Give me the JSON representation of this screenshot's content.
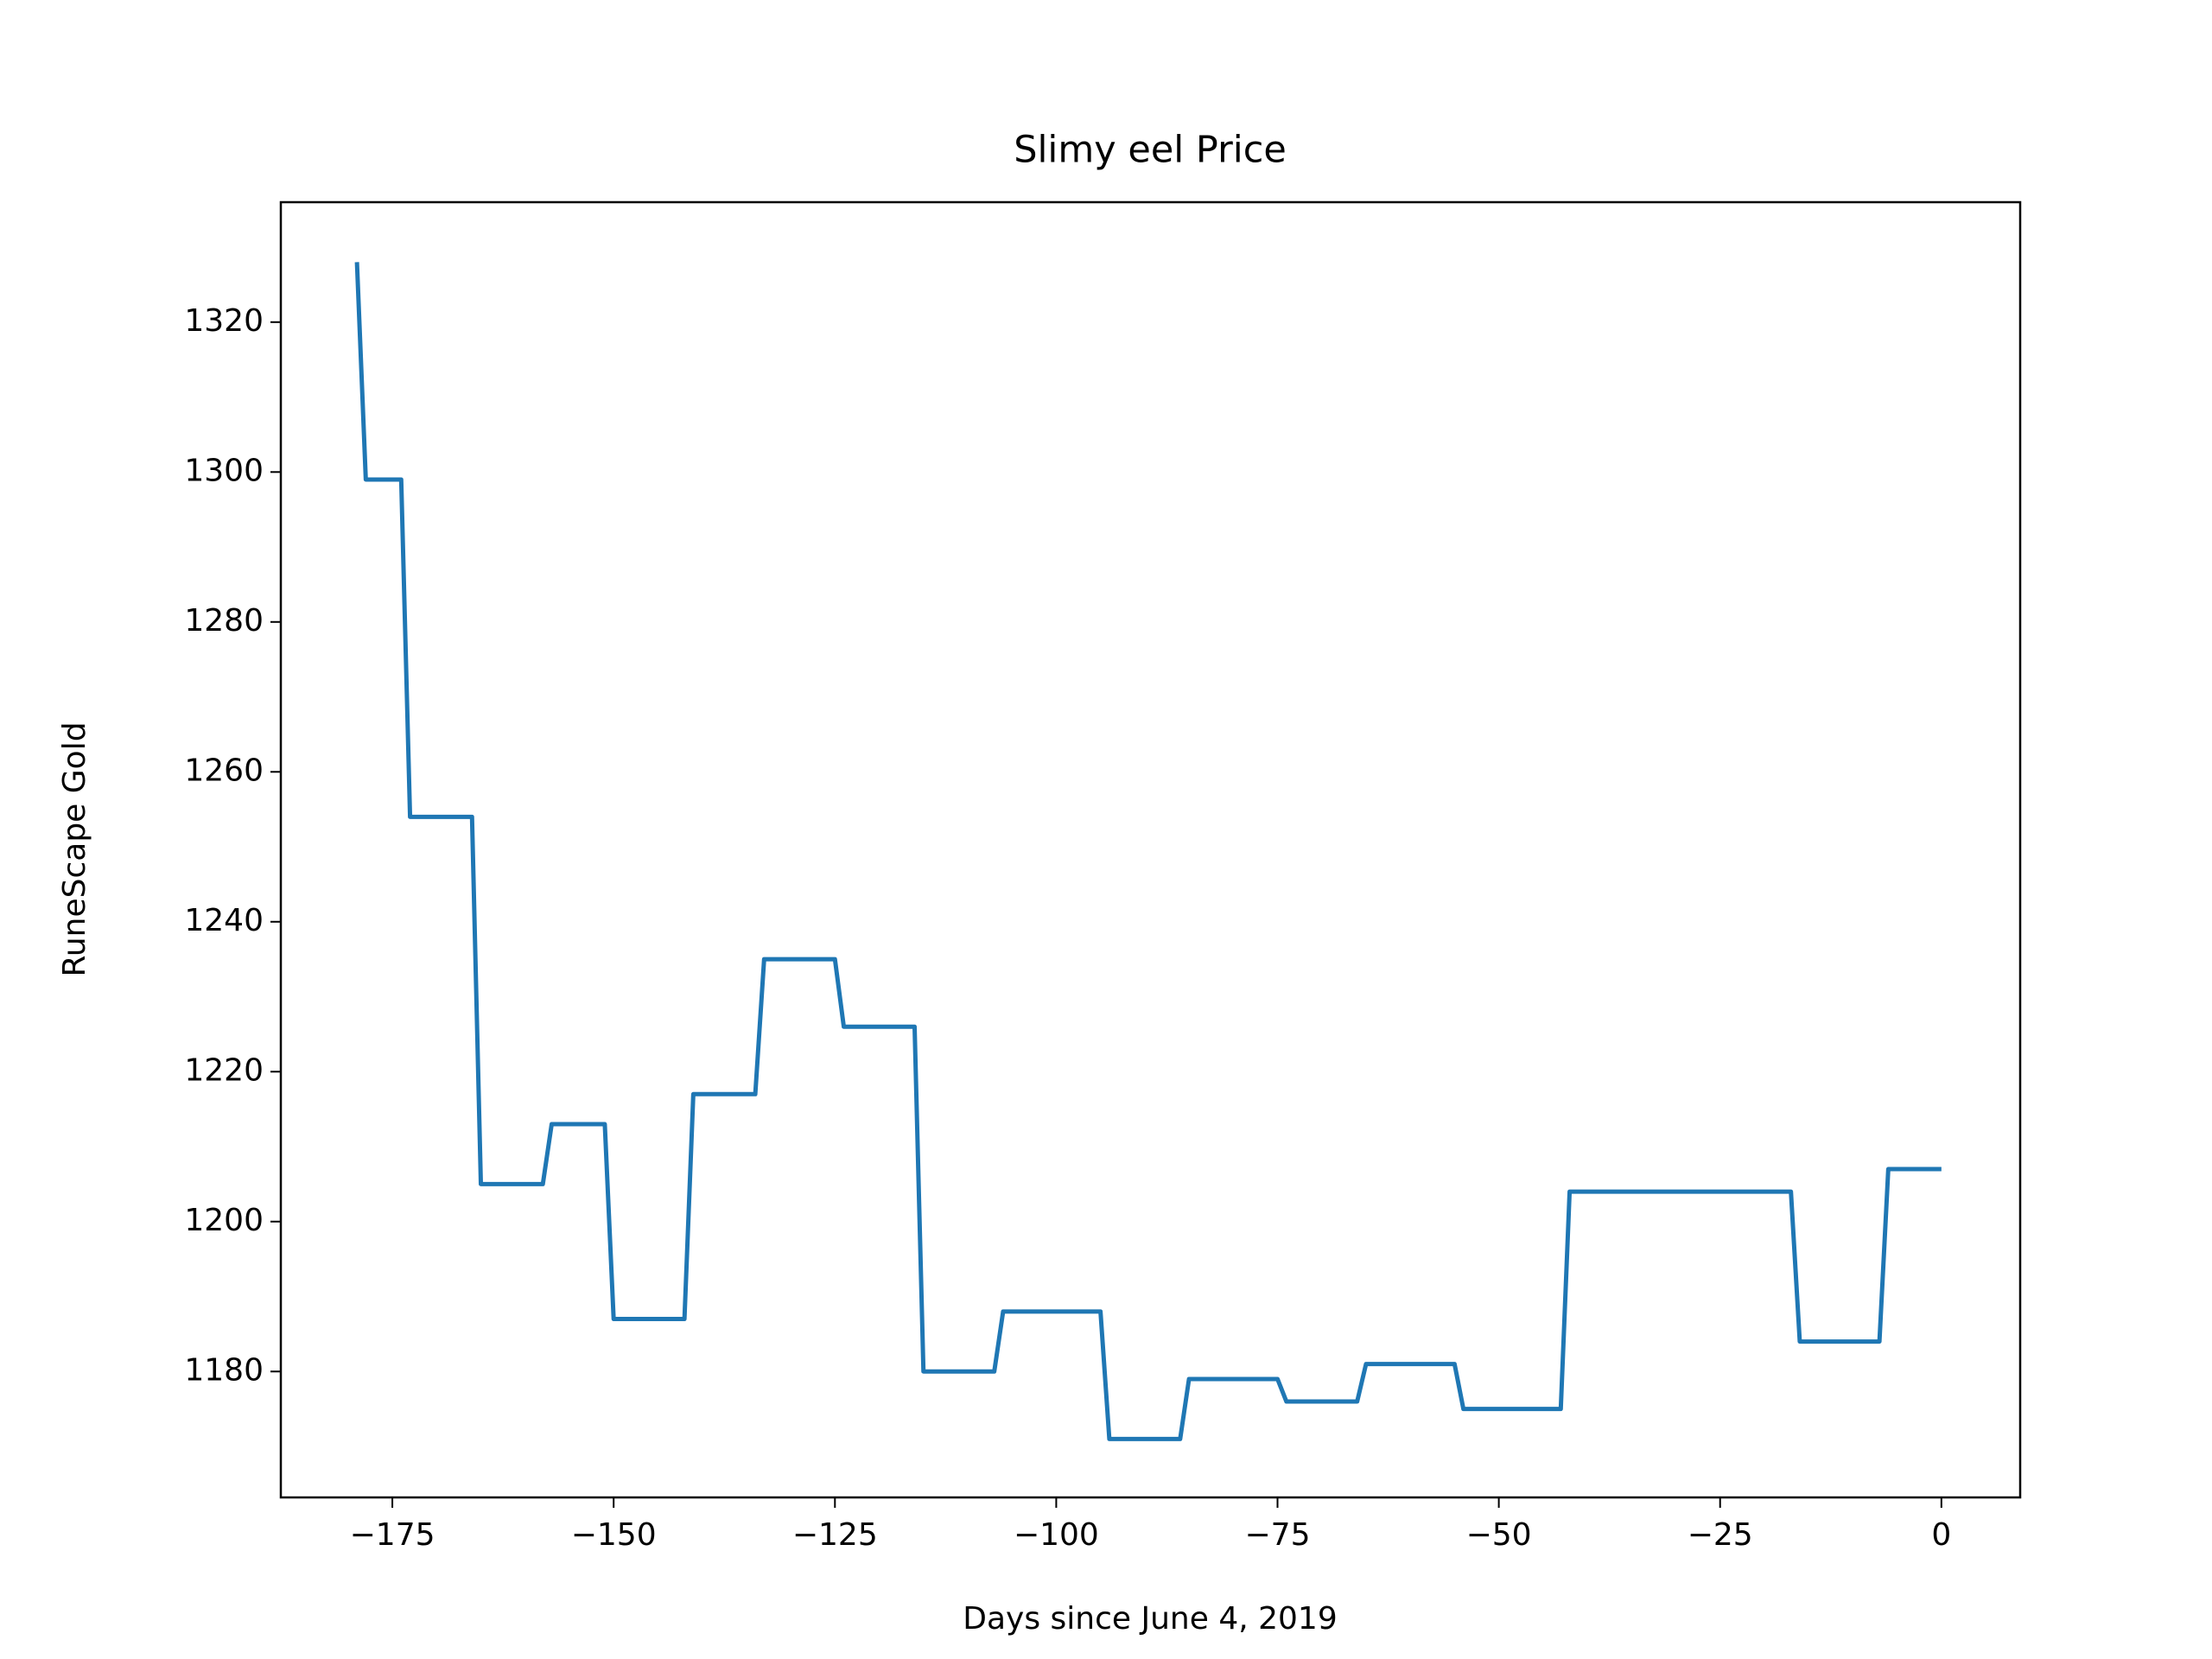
{
  "chart_data": {
    "type": "line",
    "title": "Slimy eel Price",
    "x_label": "Days since June 4, 2019",
    "y_label": "RuneScape Gold",
    "series": [
      {
        "name": "Slimy eel",
        "color": "#1f77b4",
        "x": [
          -179,
          -178,
          -174,
          -173,
          -166,
          -165,
          -158,
          -157,
          -151,
          -150,
          -142,
          -141,
          -134,
          -133,
          -125,
          -124,
          -116,
          -115,
          -107,
          -106,
          -95,
          -94,
          -86,
          -85,
          -75,
          -74,
          -66,
          -65,
          -55,
          -54,
          -43,
          -42,
          -17,
          -16,
          -7,
          -6,
          0
        ],
        "values": [
          1328,
          1299,
          1299,
          1254,
          1254,
          1205,
          1205,
          1213,
          1213,
          1187,
          1187,
          1217,
          1217,
          1235,
          1235,
          1226,
          1226,
          1180,
          1180,
          1188,
          1188,
          1171,
          1171,
          1179,
          1179,
          1176,
          1176,
          1181,
          1181,
          1175,
          1175,
          1204,
          1204,
          1184,
          1184,
          1207,
          1207
        ]
      }
    ],
    "xlim": [
      -187.6,
      8.9
    ],
    "ylim": [
      1163.2,
      1336.0
    ],
    "xticks": [
      {
        "value": -175,
        "label": "−175"
      },
      {
        "value": -150,
        "label": "−150"
      },
      {
        "value": -125,
        "label": "−125"
      },
      {
        "value": -100,
        "label": "−100"
      },
      {
        "value": -75,
        "label": "−75"
      },
      {
        "value": -50,
        "label": "−50"
      },
      {
        "value": -25,
        "label": "−25"
      },
      0
    ],
    "yticks": [
      1180,
      1200,
      1220,
      1240,
      1260,
      1280,
      1300,
      1320
    ],
    "grid": false
  }
}
